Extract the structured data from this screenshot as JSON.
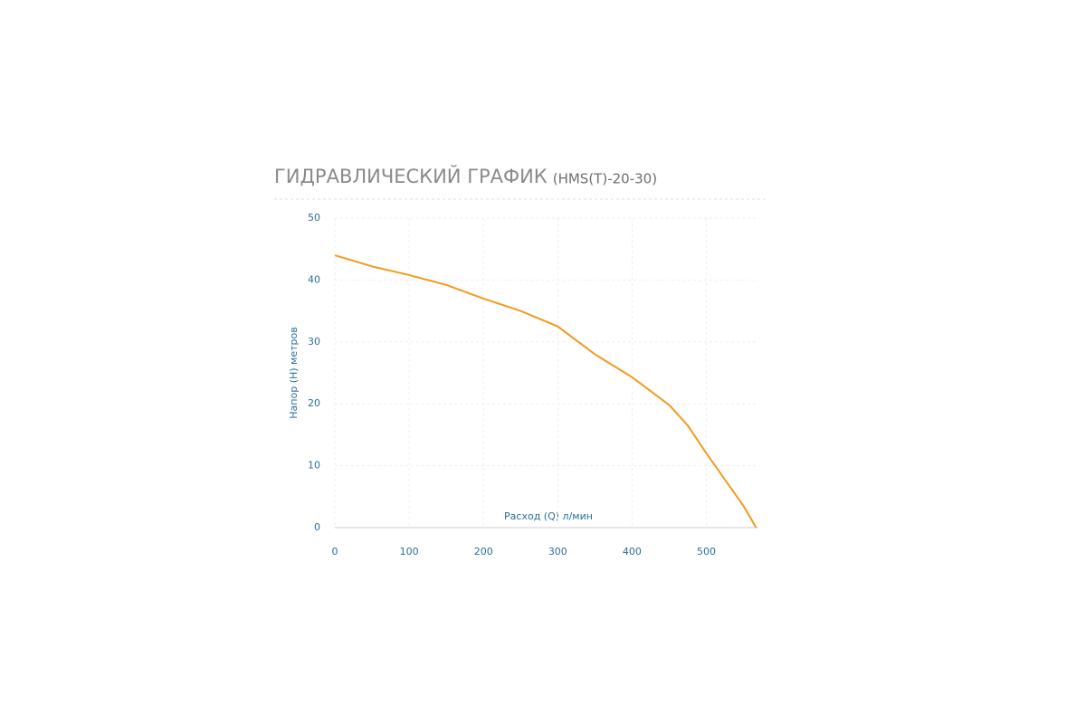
{
  "chart_data": {
    "type": "line",
    "title": "ГИДРАВЛИЧЕСКИЙ ГРАФИК",
    "subtitle": "(HMS(T)-20-30)",
    "x_label": "Расход (Q) л/мин",
    "y_label": "Напор (H) метров",
    "x": [
      0,
      50,
      100,
      150,
      200,
      250,
      300,
      350,
      400,
      450,
      475,
      500,
      550,
      567
    ],
    "values": [
      44,
      42.2,
      40.8,
      39.2,
      37,
      35,
      32.5,
      28,
      24.3,
      19.8,
      16.5,
      12,
      3.5,
      0
    ],
    "color": "#f39a1e",
    "xlim": [
      0,
      570
    ],
    "xticks": [
      0,
      100,
      200,
      300,
      400,
      500
    ],
    "ylim": [
      0,
      50
    ],
    "yticks": [
      0,
      10,
      20,
      30,
      40,
      50
    ],
    "grid": true
  }
}
